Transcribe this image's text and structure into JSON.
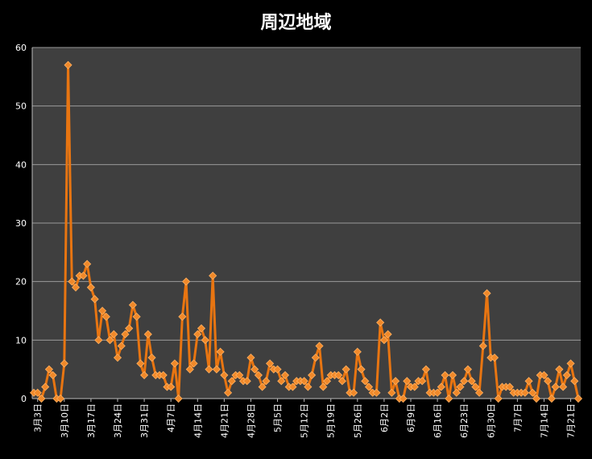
{
  "chart_data": {
    "type": "line",
    "title": "周辺地域",
    "xlabel": "",
    "ylabel": "",
    "ylim": [
      0,
      60
    ],
    "yticks": [
      0,
      10,
      20,
      30,
      40,
      50,
      60
    ],
    "grid": true,
    "x_tick_labels": [
      "3月3日",
      "3月10日",
      "3月17日",
      "3月24日",
      "3月31日",
      "4月7日",
      "4月14日",
      "4月21日",
      "4月28日",
      "5月5日",
      "5月12日",
      "5月19日",
      "5月26日",
      "6月2日",
      "6月9日",
      "6月16日",
      "6月23日",
      "6月30日",
      "7月7日",
      "7月14日",
      "7月21日"
    ],
    "x_tick_every": 7,
    "series_color": "#e87511",
    "values": [
      1,
      1,
      0,
      2,
      5,
      4,
      0,
      0,
      6,
      57,
      20,
      19,
      21,
      21,
      23,
      19,
      17,
      10,
      15,
      14,
      10,
      11,
      7,
      9,
      11,
      12,
      16,
      14,
      6,
      4,
      11,
      7,
      4,
      4,
      4,
      2,
      2,
      6,
      0,
      14,
      20,
      5,
      6,
      11,
      12,
      10,
      5,
      21,
      5,
      8,
      4,
      1,
      3,
      4,
      4,
      3,
      3,
      7,
      5,
      4,
      2,
      3,
      6,
      5,
      5,
      3,
      4,
      2,
      2,
      3,
      3,
      3,
      2,
      4,
      7,
      9,
      2,
      3,
      4,
      4,
      4,
      3,
      5,
      1,
      1,
      8,
      5,
      3,
      2,
      1,
      1,
      13,
      10,
      11,
      1,
      3,
      0,
      0,
      3,
      2,
      2,
      3,
      3,
      5,
      1,
      1,
      1,
      2,
      4,
      0,
      4,
      1,
      2,
      3,
      5,
      3,
      2,
      1,
      9,
      18,
      7,
      7,
      0,
      2,
      2,
      2,
      1,
      1,
      1,
      1,
      3,
      1,
      0,
      4,
      4,
      3,
      0,
      2,
      5,
      2,
      4,
      6,
      3,
      0
    ]
  }
}
